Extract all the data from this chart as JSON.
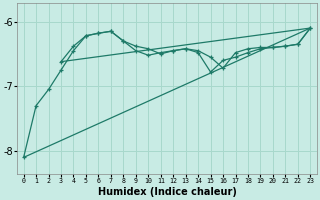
{
  "xlabel": "Humidex (Indice chaleur)",
  "bg_color": "#c8ebe4",
  "grid_color": "#a8d8cc",
  "line_color": "#1e7a68",
  "xlim": [
    -0.5,
    23.5
  ],
  "ylim": [
    -8.35,
    -5.72
  ],
  "yticks": [
    -8,
    -7,
    -6
  ],
  "ytick_labels": [
    "-8",
    "-7",
    "-6"
  ],
  "xticks": [
    0,
    1,
    2,
    3,
    4,
    5,
    6,
    7,
    8,
    9,
    10,
    11,
    12,
    13,
    14,
    15,
    16,
    17,
    18,
    19,
    20,
    21,
    22,
    23
  ],
  "curve1_x": [
    0,
    1,
    2,
    3,
    4,
    5,
    6,
    7,
    8,
    9,
    10,
    11,
    12,
    13,
    14,
    15,
    16,
    17,
    18,
    19,
    20,
    21,
    22,
    23
  ],
  "curve1_y": [
    -8.1,
    -7.3,
    -7.05,
    -6.75,
    -6.45,
    -6.22,
    -6.18,
    -6.15,
    -6.3,
    -6.38,
    -6.42,
    -6.5,
    -6.45,
    -6.42,
    -6.45,
    -6.55,
    -6.72,
    -6.48,
    -6.42,
    -6.4,
    -6.4,
    -6.38,
    -6.35,
    -6.1
  ],
  "curve2_x": [
    3,
    4,
    5,
    6,
    7,
    8,
    9,
    10,
    11,
    12,
    13,
    14,
    15,
    16,
    17,
    18,
    19,
    20,
    21,
    22,
    23
  ],
  "curve2_y": [
    -6.62,
    -6.38,
    -6.22,
    -6.18,
    -6.15,
    -6.3,
    -6.45,
    -6.52,
    -6.48,
    -6.45,
    -6.42,
    -6.48,
    -6.78,
    -6.6,
    -6.55,
    -6.48,
    -6.42,
    -6.4,
    -6.38,
    -6.35,
    -6.1
  ],
  "line1_x": [
    0,
    23
  ],
  "line1_y": [
    -8.1,
    -6.1
  ],
  "line2_x": [
    3,
    23
  ],
  "line2_y": [
    -6.62,
    -6.1
  ]
}
